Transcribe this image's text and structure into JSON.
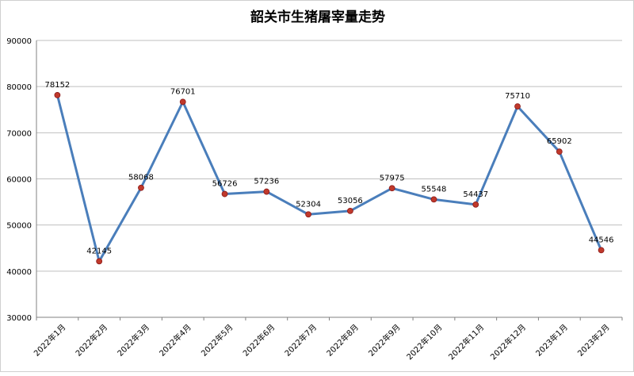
{
  "chart_data": {
    "type": "line",
    "title": "韶关市生猪屠宰量走势",
    "xlabel": "",
    "ylabel": "",
    "categories": [
      "2022年1月",
      "2022年2月",
      "2022年3月",
      "2022年4月",
      "2022年5月",
      "2022年6月",
      "2022年7月",
      "2022年8月",
      "2022年9月",
      "2022年10月",
      "2022年11月",
      "2022年12月",
      "2023年1月",
      "2023年2月"
    ],
    "series": [
      {
        "values": [
          78152,
          42145,
          58068,
          76701,
          56726,
          57236,
          52304,
          53056,
          57975,
          55548,
          54437,
          75710,
          65902,
          44546
        ]
      }
    ],
    "ylim": [
      30000,
      90000
    ],
    "yticks": [
      30000,
      40000,
      50000,
      60000,
      70000,
      80000,
      90000
    ],
    "grid": "horizontal",
    "legend": "none",
    "colors": {
      "line": "#4a7ebb",
      "marker": "#c0392b",
      "grid": "#bfbfbf"
    }
  }
}
